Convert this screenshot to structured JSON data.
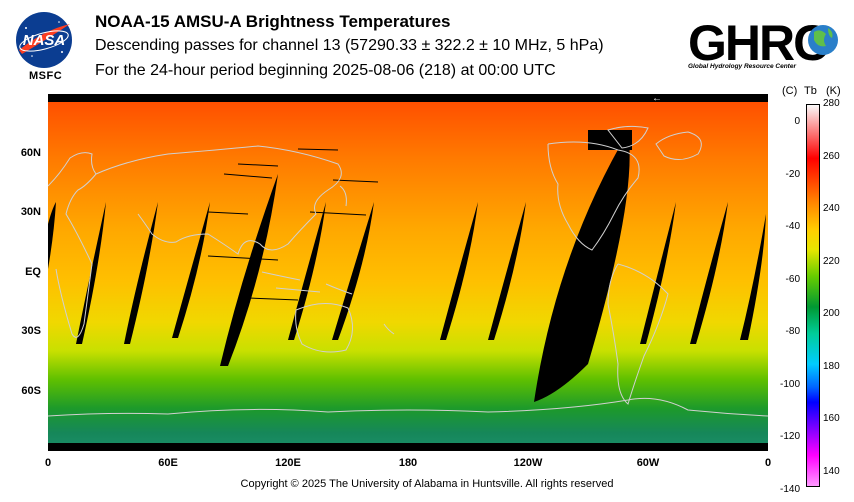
{
  "header": {
    "title": "NOAA-15 AMSU-A Brightness Temperatures",
    "subtitle": "Descending passes for channel 13 (57290.33 ± 322.2 ± 10 MHz, 5 hPa)",
    "period": "For the 24-hour period beginning 2025-08-06 (218) at 00:00 UTC"
  },
  "logos": {
    "nasa_text": "NASA",
    "msfc_text": "MSFC",
    "ghrc_text": "GHRC",
    "ghrc_sub": "Global Hydrology Resource Center"
  },
  "map": {
    "lat_labels": [
      "60N",
      "30N",
      "EQ",
      "30S",
      "60S"
    ],
    "lon_labels": [
      "0",
      "60E",
      "120E",
      "180",
      "120W",
      "60W",
      "0"
    ],
    "lat_values": [
      60,
      30,
      0,
      -30,
      -60
    ],
    "lon_values": [
      0,
      60,
      120,
      180,
      240,
      300,
      360
    ],
    "lat_range": [
      -90,
      90
    ],
    "lon_range": [
      0,
      360
    ],
    "arrow": "←"
  },
  "colorbar": {
    "header_c": "(C)",
    "header_tb": "Tb",
    "header_k": "(K)",
    "celsius_labels": [
      "0",
      "-20",
      "-40",
      "-60",
      "-80",
      "-100",
      "-120",
      "-140"
    ],
    "kelvin_labels": [
      "280",
      "260",
      "240",
      "220",
      "200",
      "180",
      "160",
      "140"
    ],
    "kelvin_range": [
      135,
      280
    ]
  },
  "footer": {
    "copyright": "Copyright © 2025 The University of Alabama in Huntsville.  All rights reserved"
  },
  "colors": {
    "swath_gap": "#000000",
    "coastline": "#d0d0d0"
  }
}
